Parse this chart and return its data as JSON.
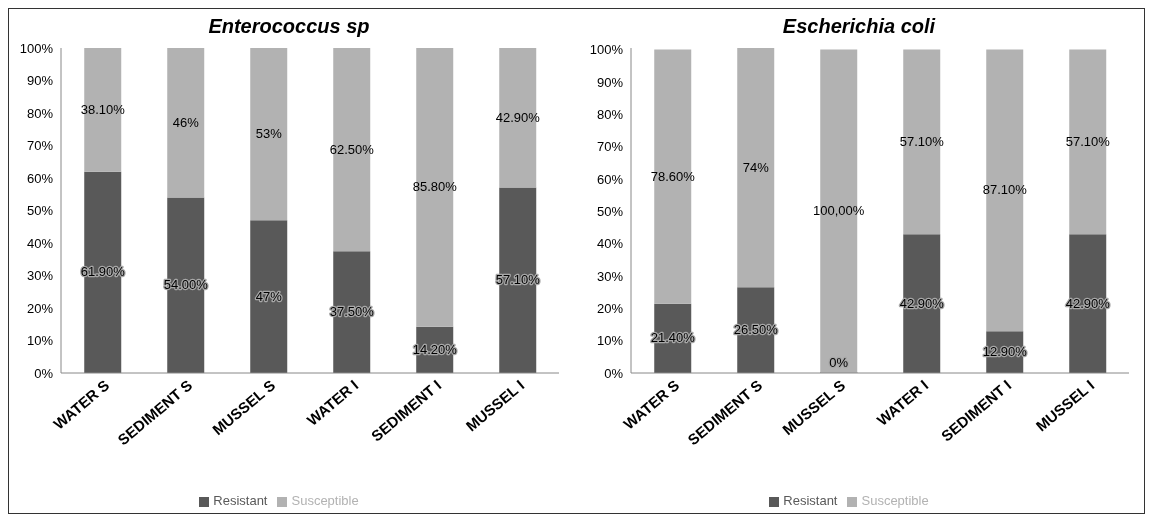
{
  "chart_data": [
    {
      "type": "bar",
      "title": "Enterococcus sp",
      "categories": [
        "WATER S",
        "SEDIMENT S",
        "MUSSEL S",
        "WATER I",
        "SEDIMENT I",
        "MUSSEL I"
      ],
      "stacked": true,
      "legend": "bottom",
      "ylim": [
        0,
        100
      ],
      "yticks": [
        {
          "value": 0,
          "label": "0%"
        },
        {
          "value": 10,
          "label": "10%"
        },
        {
          "value": 20,
          "label": "20%"
        },
        {
          "value": 30,
          "label": "30%"
        },
        {
          "value": 40,
          "label": "40%"
        },
        {
          "value": 50,
          "label": "50%"
        },
        {
          "value": 60,
          "label": "60%"
        },
        {
          "value": 70,
          "label": "70%"
        },
        {
          "value": 80,
          "label": "80%"
        },
        {
          "value": 90,
          "label": "90%"
        },
        {
          "value": 100,
          "label": "100%"
        }
      ],
      "series": [
        {
          "name": "Resistant",
          "color": "#595959",
          "values": [
            61.9,
            54,
            47,
            37.5,
            14.2,
            57.1
          ],
          "value_labels": [
            "61.90%",
            "54.00%",
            "47%",
            "37.50%",
            "14.20%",
            "57.10%"
          ]
        },
        {
          "name": "Susceptible",
          "color": "#b2b2b2",
          "values": [
            38.1,
            46,
            53,
            62.5,
            85.8,
            42.9
          ],
          "value_labels": [
            "38.10%",
            "46%",
            "53%",
            "62.50%",
            "85.80%",
            "42.90%"
          ]
        }
      ]
    },
    {
      "type": "bar",
      "title": "Escherichia coli",
      "categories": [
        "WATER S",
        "SEDIMENT S",
        "MUSSEL S",
        "WATER I",
        "SEDIMENT I",
        "MUSSEL I"
      ],
      "stacked": true,
      "legend": "bottom",
      "ylim": [
        0,
        100.5
      ],
      "yticks": [
        {
          "value": 0,
          "label": "0%"
        },
        {
          "value": 10,
          "label": "10%"
        },
        {
          "value": 20,
          "label": "20%"
        },
        {
          "value": 30,
          "label": "30%"
        },
        {
          "value": 40,
          "label": "40%"
        },
        {
          "value": 50,
          "label": "50%"
        },
        {
          "value": 60,
          "label": "60%"
        },
        {
          "value": 70,
          "label": "70%"
        },
        {
          "value": 80,
          "label": "80%"
        },
        {
          "value": 90,
          "label": "90%"
        },
        {
          "value": 100,
          "label": "100%"
        }
      ],
      "series": [
        {
          "name": "Resistant",
          "color": "#595959",
          "values": [
            21.4,
            26.5,
            0,
            42.9,
            12.9,
            42.9
          ],
          "value_labels": [
            "21.40%",
            "26.50%",
            "0%",
            "42.90%",
            "12.90%",
            "42.90%"
          ]
        },
        {
          "name": "Susceptible",
          "color": "#b2b2b2",
          "values": [
            78.6,
            74,
            100,
            57.1,
            87.1,
            57.1
          ],
          "value_labels": [
            "78.60%",
            "74%",
            "100,00%",
            "57.10%",
            "87.10%",
            "57.10%"
          ]
        }
      ]
    }
  ]
}
